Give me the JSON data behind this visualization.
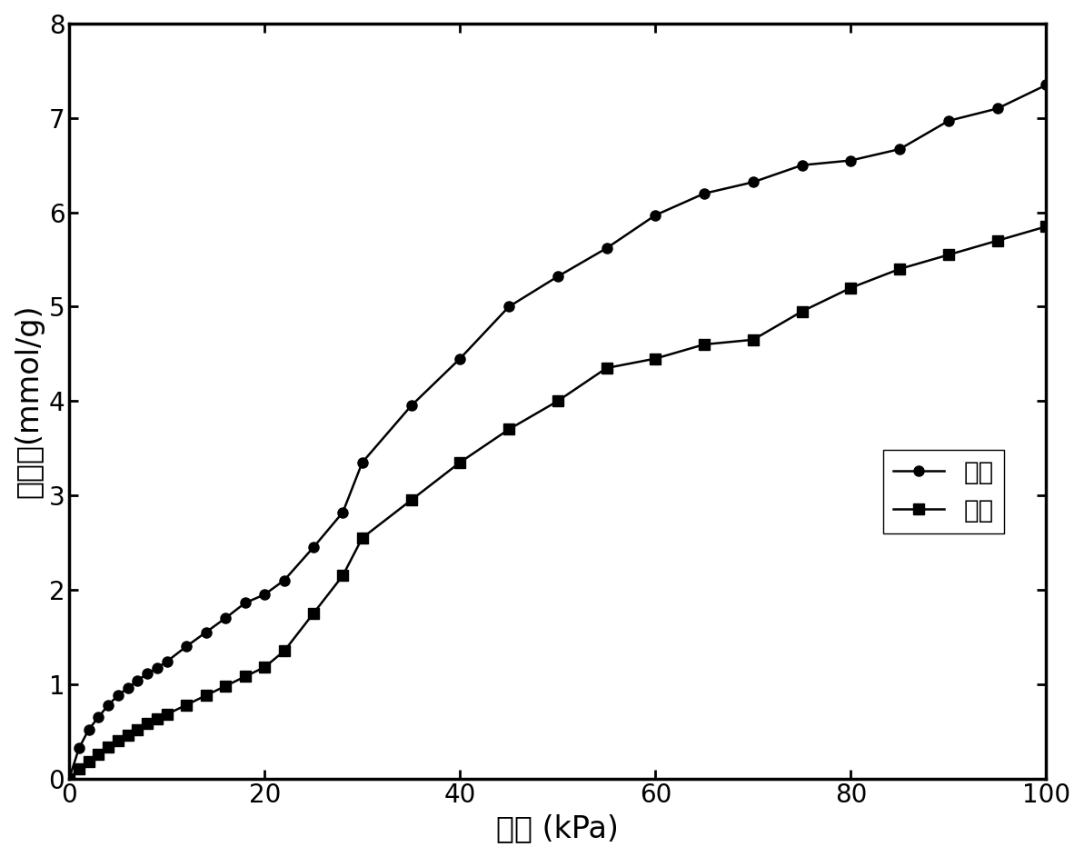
{
  "ethane_x": [
    0,
    1,
    2,
    3,
    4,
    5,
    6,
    7,
    8,
    9,
    10,
    12,
    14,
    16,
    18,
    20,
    22,
    25,
    28,
    30,
    35,
    40,
    45,
    50,
    55,
    60,
    65,
    70,
    75,
    80,
    85,
    90,
    95,
    100
  ],
  "ethane_y": [
    0,
    0.32,
    0.52,
    0.65,
    0.78,
    0.88,
    0.96,
    1.04,
    1.11,
    1.17,
    1.24,
    1.4,
    1.55,
    1.7,
    1.86,
    1.95,
    2.1,
    2.45,
    2.82,
    3.35,
    3.95,
    4.45,
    5.0,
    5.32,
    5.62,
    5.97,
    6.2,
    6.32,
    6.5,
    6.55,
    6.67,
    6.97,
    7.1,
    7.35
  ],
  "ethylene_x": [
    0,
    1,
    2,
    3,
    4,
    5,
    6,
    7,
    8,
    9,
    10,
    12,
    14,
    16,
    18,
    20,
    22,
    25,
    28,
    30,
    35,
    40,
    45,
    50,
    55,
    60,
    65,
    70,
    75,
    80,
    85,
    90,
    95,
    100
  ],
  "ethylene_y": [
    0,
    0.1,
    0.18,
    0.26,
    0.33,
    0.4,
    0.46,
    0.52,
    0.58,
    0.63,
    0.68,
    0.78,
    0.88,
    0.98,
    1.08,
    1.18,
    1.35,
    1.75,
    2.15,
    2.55,
    2.95,
    3.35,
    3.7,
    4.0,
    4.35,
    4.45,
    4.6,
    4.65,
    4.95,
    5.2,
    5.4,
    5.55,
    5.7,
    5.85
  ],
  "xlabel": "压力 (kPa)",
  "ylabel": "吸附量(mmol/g)",
  "legend_ethane": "乙烷",
  "legend_ethylene": "乙烯",
  "xlim": [
    0,
    100
  ],
  "ylim": [
    0,
    8
  ],
  "xticks": [
    0,
    20,
    40,
    60,
    80,
    100
  ],
  "yticks": [
    0,
    1,
    2,
    3,
    4,
    5,
    6,
    7,
    8
  ],
  "line_color": "#000000",
  "bg_color": "#ffffff",
  "marker_circle": "o",
  "marker_square": "s",
  "markersize": 8,
  "linewidth": 1.8,
  "xlabel_fontsize": 24,
  "ylabel_fontsize": 24,
  "tick_fontsize": 20,
  "legend_fontsize": 20
}
